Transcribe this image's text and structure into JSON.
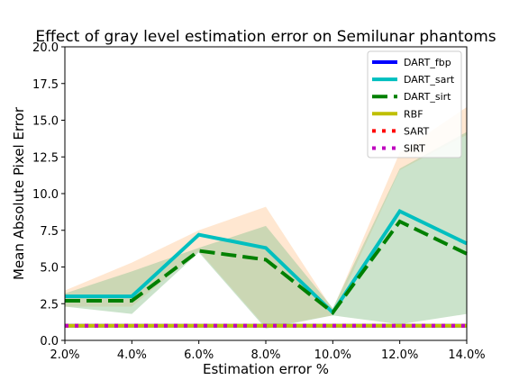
{
  "chart_data": {
    "type": "line",
    "title": "Effect of gray level estimation error on Semilunar phantoms",
    "xlabel": "Estimation error %",
    "ylabel": "Mean Absolute Pixel Error",
    "x": [
      2,
      4,
      6,
      8,
      10,
      12,
      14
    ],
    "x_tick_labels": [
      "2.0%",
      "4.0%",
      "6.0%",
      "8.0%",
      "10.0%",
      "12.0%",
      "14.0%"
    ],
    "xlim": [
      2,
      14
    ],
    "ylim": [
      0,
      20
    ],
    "y_ticks": [
      0,
      2.5,
      5,
      7.5,
      10,
      12.5,
      15,
      17.5,
      20
    ],
    "y_tick_labels": [
      "0.0",
      "2.5",
      "5.0",
      "7.5",
      "10.0",
      "12.5",
      "15.0",
      "17.5",
      "20.0"
    ],
    "grid": false,
    "legend_position": "top-right",
    "series": [
      {
        "name": "DART_fbp",
        "color": "#0000ff",
        "style": "solid",
        "values": [
          1.0,
          1.0,
          1.0,
          1.0,
          1.0,
          1.0,
          1.0
        ]
      },
      {
        "name": "DART_sart",
        "color": "#00bfbf",
        "style": "solid",
        "values": [
          3.0,
          3.0,
          7.2,
          6.3,
          1.9,
          8.8,
          6.6
        ]
      },
      {
        "name": "DART_sirt",
        "color": "#008000",
        "style": "dashed",
        "values": [
          2.7,
          2.7,
          6.1,
          5.5,
          1.9,
          8.1,
          5.9
        ]
      },
      {
        "name": "RBF",
        "color": "#bfbf00",
        "style": "solid",
        "values": [
          1.0,
          1.0,
          1.0,
          1.0,
          1.0,
          1.0,
          1.0
        ]
      },
      {
        "name": "SART",
        "color": "#ff0000",
        "style": "dotted",
        "values": [
          1.0,
          1.0,
          1.0,
          1.0,
          1.0,
          1.0,
          1.0
        ]
      },
      {
        "name": "SIRT",
        "color": "#bf00bf",
        "style": "dotted",
        "values": [
          1.0,
          1.0,
          1.0,
          1.0,
          1.0,
          1.0,
          1.0
        ]
      }
    ],
    "bands": [
      {
        "color": "#ffdab9",
        "opacity": 0.65,
        "lower": [
          2.3,
          2.3,
          6.1,
          0.9,
          1.7,
          11.6,
          14.0
        ],
        "upper": [
          3.4,
          5.3,
          7.5,
          9.1,
          2.1,
          12.8,
          15.9
        ]
      },
      {
        "color": "#98c898",
        "opacity": 0.5,
        "lower": [
          2.3,
          1.8,
          6.0,
          0.8,
          1.7,
          1.1,
          1.8
        ],
        "upper": [
          3.2,
          4.7,
          6.3,
          7.8,
          2.2,
          11.7,
          14.2
        ]
      }
    ]
  }
}
